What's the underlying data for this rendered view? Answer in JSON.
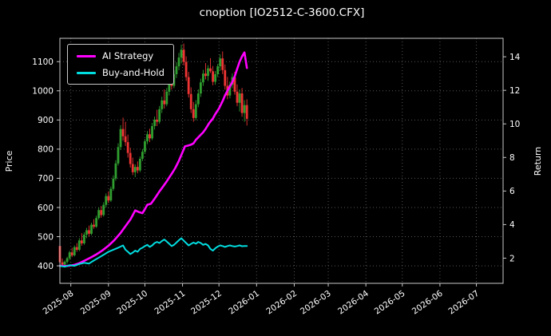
{
  "chart_data": {
    "type": "candlestick",
    "title": "cnoption [IO2512-C-3600.CFX]",
    "colors": {
      "background": "#000000",
      "text": "#ffffff",
      "grid": "#555555",
      "frame": "#c8c8c8",
      "candle_up": "#2f9e2f",
      "candle_down": "#ef3434",
      "ai_strategy": "#ff00ff",
      "buy_and_hold": "#00dde0"
    },
    "x_axis": {
      "range_days": [
        0,
        365
      ],
      "ticks": [
        {
          "day": 9,
          "label": "2025-08"
        },
        {
          "day": 40,
          "label": "2025-09"
        },
        {
          "day": 70,
          "label": "2025-10"
        },
        {
          "day": 101,
          "label": "2025-11"
        },
        {
          "day": 131,
          "label": "2025-12"
        },
        {
          "day": 162,
          "label": "2026-01"
        },
        {
          "day": 193,
          "label": "2026-02"
        },
        {
          "day": 221,
          "label": "2026-03"
        },
        {
          "day": 252,
          "label": "2026-04"
        },
        {
          "day": 282,
          "label": "2026-05"
        },
        {
          "day": 313,
          "label": "2026-06"
        },
        {
          "day": 343,
          "label": "2026-07"
        }
      ]
    },
    "left_axis": {
      "label": "Price",
      "range": [
        340,
        1180
      ],
      "ticks": [
        400,
        500,
        600,
        700,
        800,
        900,
        1000,
        1100
      ]
    },
    "right_axis": {
      "label": "Return",
      "range": [
        0.5,
        15.1
      ],
      "ticks": [
        2,
        4,
        6,
        8,
        10,
        12,
        14
      ]
    },
    "candles": {
      "up_color": "#2f9e2f",
      "down_color": "#ef3434",
      "ohlc": [
        [
          0,
          468,
          486,
          402,
          412
        ],
        [
          2,
          412,
          425,
          396,
          404
        ],
        [
          4,
          404,
          418,
          395,
          414
        ],
        [
          6,
          414,
          431,
          408,
          426
        ],
        [
          8,
          426,
          452,
          420,
          446
        ],
        [
          10,
          446,
          462,
          430,
          436
        ],
        [
          12,
          436,
          470,
          432,
          464
        ],
        [
          14,
          464,
          478,
          448,
          455
        ],
        [
          16,
          455,
          495,
          450,
          487
        ],
        [
          18,
          487,
          512,
          469,
          477
        ],
        [
          20,
          477,
          515,
          472,
          507
        ],
        [
          22,
          507,
          530,
          495,
          522
        ],
        [
          24,
          522,
          538,
          500,
          510
        ],
        [
          26,
          510,
          548,
          505,
          541
        ],
        [
          28,
          541,
          560,
          527,
          534
        ],
        [
          30,
          534,
          572,
          530,
          564
        ],
        [
          32,
          564,
          600,
          558,
          591
        ],
        [
          34,
          591,
          605,
          565,
          574
        ],
        [
          36,
          574,
          618,
          569,
          609
        ],
        [
          38,
          609,
          648,
          600,
          639
        ],
        [
          40,
          639,
          655,
          615,
          624
        ],
        [
          42,
          624,
          672,
          619,
          664
        ],
        [
          44,
          664,
          710,
          657,
          699
        ],
        [
          46,
          699,
          762,
          692,
          751
        ],
        [
          48,
          751,
          820,
          744,
          807
        ],
        [
          50,
          807,
          882,
          797,
          869
        ],
        [
          52,
          869,
          908,
          829,
          844
        ],
        [
          54,
          844,
          894,
          811,
          824
        ],
        [
          56,
          824,
          850,
          771,
          787
        ],
        [
          58,
          787,
          805,
          737,
          749
        ],
        [
          60,
          749,
          771,
          711,
          721
        ],
        [
          62,
          721,
          748,
          704,
          739
        ],
        [
          64,
          739,
          758,
          717,
          727
        ],
        [
          66,
          727,
          775,
          721,
          767
        ],
        [
          68,
          767,
          800,
          759,
          791
        ],
        [
          70,
          791,
          835,
          784,
          827
        ],
        [
          72,
          827,
          862,
          817,
          851
        ],
        [
          74,
          851,
          870,
          824,
          837
        ],
        [
          76,
          837,
          890,
          831,
          879
        ],
        [
          78,
          879,
          912,
          867,
          901
        ],
        [
          80,
          901,
          935,
          879,
          894
        ],
        [
          82,
          894,
          948,
          887,
          937
        ],
        [
          84,
          937,
          980,
          924,
          967
        ],
        [
          86,
          967,
          1005,
          939,
          954
        ],
        [
          88,
          954,
          1010,
          947,
          997
        ],
        [
          90,
          997,
          1040,
          984,
          1027
        ],
        [
          92,
          1027,
          1062,
          1004,
          1017
        ],
        [
          94,
          1017,
          1070,
          1009,
          1057
        ],
        [
          96,
          1057,
          1098,
          1044,
          1084
        ],
        [
          98,
          1084,
          1130,
          1071,
          1114
        ],
        [
          100,
          1114,
          1158,
          1094,
          1141
        ],
        [
          102,
          1141,
          1162,
          1087,
          1099
        ],
        [
          104,
          1099,
          1118,
          1034,
          1047
        ],
        [
          106,
          1047,
          1065,
          977,
          989
        ],
        [
          108,
          989,
          1012,
          924,
          937
        ],
        [
          110,
          937,
          962,
          894,
          907
        ],
        [
          112,
          907,
          968,
          899,
          954
        ],
        [
          114,
          954,
          1005,
          944,
          991
        ],
        [
          116,
          991,
          1042,
          979,
          1029
        ],
        [
          118,
          1029,
          1072,
          1017,
          1059
        ],
        [
          120,
          1059,
          1095,
          1039,
          1051
        ],
        [
          122,
          1051,
          1088,
          1034,
          1077
        ],
        [
          124,
          1077,
          1112,
          1061,
          1067
        ],
        [
          126,
          1067,
          1085,
          1019,
          1031
        ],
        [
          128,
          1031,
          1068,
          1021,
          1057
        ],
        [
          130,
          1057,
          1092,
          1047,
          1084
        ],
        [
          132,
          1084,
          1125,
          1069,
          1111
        ],
        [
          134,
          1111,
          1135,
          1057,
          1071
        ],
        [
          136,
          1071,
          1090,
          1004,
          1017
        ],
        [
          138,
          1017,
          1048,
          971,
          984
        ],
        [
          140,
          984,
          1032,
          974,
          1021
        ],
        [
          142,
          1021,
          1060,
          1009,
          1047
        ],
        [
          144,
          1047,
          1065,
          987,
          997
        ],
        [
          146,
          997,
          1022,
          947,
          959
        ],
        [
          148,
          959,
          1005,
          929,
          991
        ],
        [
          150,
          991,
          1010,
          911,
          924
        ],
        [
          152,
          924,
          968,
          894,
          951
        ],
        [
          154,
          951,
          971,
          881,
          904
        ]
      ]
    },
    "series": [
      {
        "name": "AI Strategy",
        "color": "#ff00ff",
        "axis": "right",
        "width": 2.6,
        "points": [
          [
            0,
            1.54
          ],
          [
            4,
            1.53
          ],
          [
            8,
            1.55
          ],
          [
            12,
            1.6
          ],
          [
            16,
            1.7
          ],
          [
            20,
            1.84
          ],
          [
            25,
            2.02
          ],
          [
            30,
            2.22
          ],
          [
            35,
            2.46
          ],
          [
            40,
            2.74
          ],
          [
            45,
            3.08
          ],
          [
            50,
            3.5
          ],
          [
            55,
            4.0
          ],
          [
            58,
            4.3
          ],
          [
            60,
            4.56
          ],
          [
            62,
            4.84
          ],
          [
            65,
            4.75
          ],
          [
            68,
            4.68
          ],
          [
            70,
            4.92
          ],
          [
            72,
            5.18
          ],
          [
            75,
            5.24
          ],
          [
            78,
            5.54
          ],
          [
            82,
            5.98
          ],
          [
            85,
            6.27
          ],
          [
            88,
            6.58
          ],
          [
            92,
            7.02
          ],
          [
            95,
            7.37
          ],
          [
            98,
            7.8
          ],
          [
            101,
            8.32
          ],
          [
            103,
            8.66
          ],
          [
            105,
            8.7
          ],
          [
            108,
            8.76
          ],
          [
            110,
            8.84
          ],
          [
            112,
            9.05
          ],
          [
            115,
            9.28
          ],
          [
            118,
            9.5
          ],
          [
            120,
            9.7
          ],
          [
            123,
            10.05
          ],
          [
            126,
            10.32
          ],
          [
            128,
            10.58
          ],
          [
            131,
            10.92
          ],
          [
            134,
            11.36
          ],
          [
            136,
            11.7
          ],
          [
            138,
            11.97
          ],
          [
            140,
            12.23
          ],
          [
            142,
            12.49
          ],
          [
            144,
            12.84
          ],
          [
            146,
            13.28
          ],
          [
            148,
            13.7
          ],
          [
            150,
            14.02
          ],
          [
            152,
            14.26
          ],
          [
            154,
            13.33
          ]
        ]
      },
      {
        "name": "Buy-and-Hold",
        "color": "#00dde0",
        "axis": "right",
        "width": 2.0,
        "points": [
          [
            0,
            1.54
          ],
          [
            4,
            1.49
          ],
          [
            8,
            1.58
          ],
          [
            12,
            1.54
          ],
          [
            16,
            1.65
          ],
          [
            20,
            1.72
          ],
          [
            24,
            1.68
          ],
          [
            28,
            1.86
          ],
          [
            32,
            2.03
          ],
          [
            36,
            2.2
          ],
          [
            40,
            2.38
          ],
          [
            44,
            2.5
          ],
          [
            48,
            2.62
          ],
          [
            52,
            2.76
          ],
          [
            54,
            2.5
          ],
          [
            56,
            2.38
          ],
          [
            58,
            2.24
          ],
          [
            60,
            2.33
          ],
          [
            62,
            2.45
          ],
          [
            64,
            2.38
          ],
          [
            66,
            2.55
          ],
          [
            68,
            2.62
          ],
          [
            70,
            2.72
          ],
          [
            72,
            2.79
          ],
          [
            74,
            2.67
          ],
          [
            76,
            2.76
          ],
          [
            78,
            2.9
          ],
          [
            80,
            2.97
          ],
          [
            82,
            2.9
          ],
          [
            84,
            3.02
          ],
          [
            86,
            3.11
          ],
          [
            88,
            2.99
          ],
          [
            90,
            2.86
          ],
          [
            92,
            2.72
          ],
          [
            94,
            2.79
          ],
          [
            96,
            2.93
          ],
          [
            98,
            3.07
          ],
          [
            100,
            3.18
          ],
          [
            102,
            3.04
          ],
          [
            104,
            2.9
          ],
          [
            106,
            2.76
          ],
          [
            108,
            2.85
          ],
          [
            110,
            2.93
          ],
          [
            112,
            2.86
          ],
          [
            114,
            2.97
          ],
          [
            116,
            2.9
          ],
          [
            118,
            2.79
          ],
          [
            120,
            2.85
          ],
          [
            122,
            2.76
          ],
          [
            124,
            2.55
          ],
          [
            126,
            2.45
          ],
          [
            128,
            2.59
          ],
          [
            130,
            2.69
          ],
          [
            132,
            2.76
          ],
          [
            134,
            2.72
          ],
          [
            136,
            2.67
          ],
          [
            138,
            2.72
          ],
          [
            140,
            2.76
          ],
          [
            142,
            2.72
          ],
          [
            144,
            2.69
          ],
          [
            146,
            2.72
          ],
          [
            148,
            2.76
          ],
          [
            150,
            2.71
          ],
          [
            152,
            2.72
          ],
          [
            154,
            2.72
          ]
        ]
      }
    ],
    "legend": {
      "items": [
        {
          "label": "AI Strategy",
          "color": "#ff00ff"
        },
        {
          "label": "Buy-and-Hold",
          "color": "#00dde0"
        }
      ]
    }
  }
}
